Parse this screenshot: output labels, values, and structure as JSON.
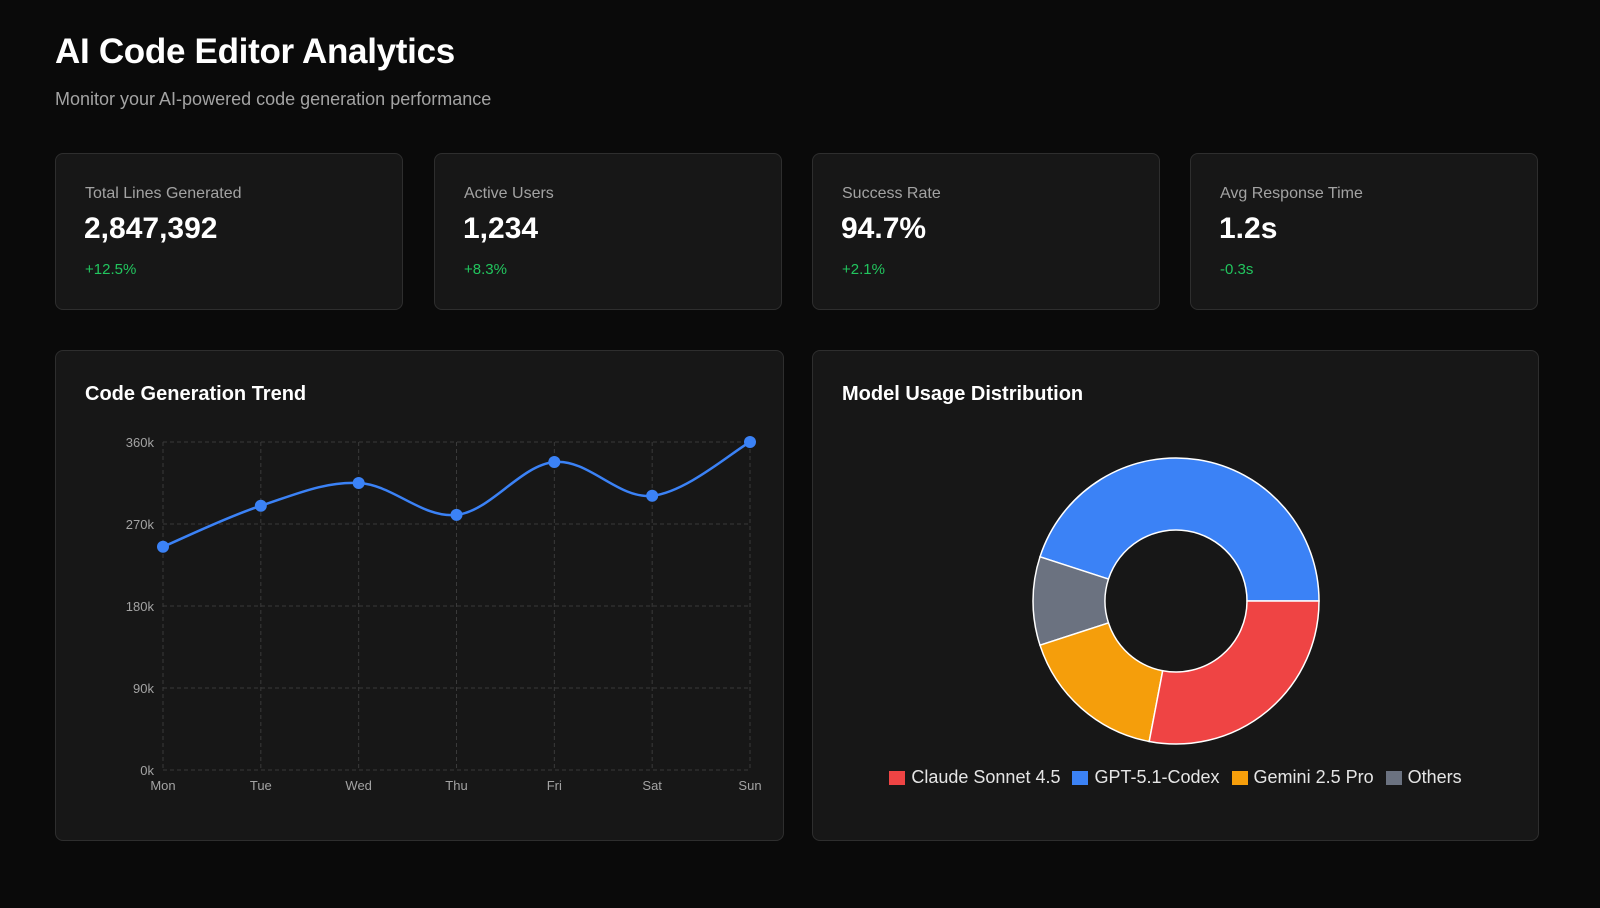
{
  "header": {
    "title": "AI Code Editor Analytics",
    "subtitle": "Monitor your AI-powered code generation performance"
  },
  "stats": [
    {
      "label": "Total Lines Generated",
      "value": "2,847,392",
      "change": "+12.5%"
    },
    {
      "label": "Active Users",
      "value": "1,234",
      "change": "+8.3%"
    },
    {
      "label": "Success Rate",
      "value": "94.7%",
      "change": "+2.1%"
    },
    {
      "label": "Avg Response Time",
      "value": "1.2s",
      "change": "-0.3s"
    }
  ],
  "colors": {
    "background": "#0a0a0a",
    "card": "#171717",
    "border": "#2e2e2e",
    "positive": "#22c55e",
    "line": "#3b82f6"
  },
  "chart_data": [
    {
      "type": "line",
      "title": "Code Generation Trend",
      "categories": [
        "Mon",
        "Tue",
        "Wed",
        "Thu",
        "Fri",
        "Sat",
        "Sun"
      ],
      "series": [
        {
          "values": [
            245000,
            290000,
            315000,
            280000,
            338000,
            301000,
            360000
          ],
          "color": "#3b82f6"
        }
      ],
      "yticks": [
        "0k",
        "90k",
        "180k",
        "270k",
        "360k"
      ],
      "ylim": [
        0,
        360000
      ],
      "grid": true,
      "smooth": true
    },
    {
      "type": "pie",
      "title": "Model Usage Distribution",
      "donut": true,
      "labels": [
        "GPT-5.1-Codex",
        "Others",
        "Gemini 2.5 Pro",
        "Claude Sonnet 4.5"
      ],
      "values": [
        45,
        10,
        17,
        28
      ],
      "colors": [
        "#3b82f6",
        "#6b7280",
        "#f59e0b",
        "#ef4444"
      ],
      "legend_order": [
        "Claude Sonnet 4.5",
        "GPT-5.1-Codex",
        "Gemini 2.5 Pro",
        "Others"
      ],
      "legend_colors": [
        "#ef4444",
        "#3b82f6",
        "#f59e0b",
        "#6b7280"
      ],
      "legend_position": "bottom"
    }
  ]
}
